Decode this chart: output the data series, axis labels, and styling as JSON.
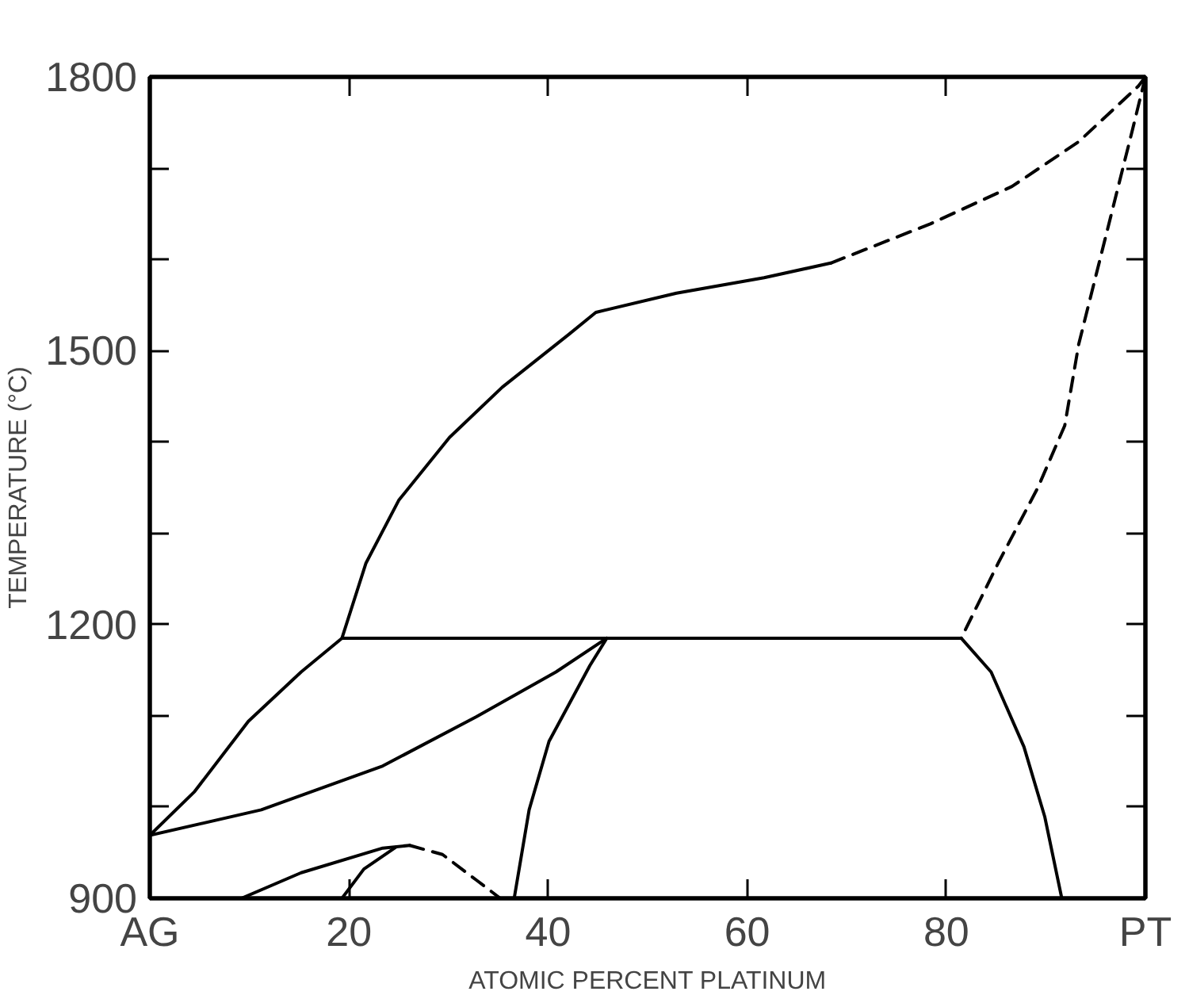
{
  "chart_data": {
    "type": "line",
    "xlabel": "ATOMIC PERCENT PLATINUM",
    "ylabel": "TEMPERATURE (°C)",
    "xlim": [
      0,
      100
    ],
    "ylim": [
      900,
      1800
    ],
    "xticks": [
      {
        "value": 0,
        "label": "AG"
      },
      20,
      40,
      60,
      80,
      {
        "value": 100,
        "label": "PT"
      }
    ],
    "yticks": [
      900,
      {
        "value": 1000,
        "label": null
      },
      {
        "value": 1100,
        "label": null
      },
      1200,
      {
        "value": 1300,
        "label": null
      },
      {
        "value": 1400,
        "label": null
      },
      1500,
      {
        "value": 1600,
        "label": null
      },
      {
        "value": 1700,
        "label": null
      },
      1800
    ],
    "line_style": "solid",
    "marker": "none",
    "series": [
      {
        "color": "#000000",
        "x": [
          0,
          4.5,
          9.9,
          15.2,
          19.3,
          21.7,
          25,
          30.1,
          35.4,
          42.1,
          44.8,
          52.9,
          61.7,
          68.4
        ],
        "values": [
          969,
          1017,
          1094,
          1148,
          1185,
          1267,
          1336,
          1405,
          1460,
          1518,
          1542,
          1563,
          1580,
          1596
        ]
      },
      {
        "color": "#000000",
        "line_style": "dashed",
        "x": [
          68.4,
          78.4,
          86.6,
          93.3,
          99.3,
          100
        ],
        "values": [
          1596,
          1639,
          1680,
          1729,
          1790,
          1800
        ]
      },
      {
        "color": "#000000",
        "line_style": "dashed",
        "x": [
          100,
          98.7,
          93.3,
          91.9,
          89.2,
          85.2,
          81.5
        ],
        "values": [
          1800,
          1742,
          1507,
          1418,
          1350,
          1267,
          1185
        ]
      },
      {
        "color": "#000000",
        "x": [
          19.3,
          45.9,
          81.5
        ],
        "values": [
          1185,
          1185,
          1185
        ]
      },
      {
        "color": "#000000",
        "x": [
          0,
          11.2,
          23.4,
          32.8,
          40.8,
          45.9
        ],
        "values": [
          969,
          997,
          1045,
          1099,
          1148,
          1185
        ]
      },
      {
        "color": "#000000",
        "x": [
          45.9,
          44.2,
          40.1,
          38.1,
          36.6
        ],
        "values": [
          1185,
          1155,
          1072,
          997,
          900
        ]
      },
      {
        "color": "#000000",
        "x": [
          81.5,
          84.5,
          87.8,
          89.9,
          91.6
        ],
        "values": [
          1185,
          1148,
          1066,
          989,
          900
        ]
      },
      {
        "color": "#000000",
        "x": [
          9.2,
          15.2,
          23.4,
          26.1
        ],
        "values": [
          900,
          928,
          955,
          958
        ]
      },
      {
        "color": "#000000",
        "line_style": "dashed",
        "x": [
          26.1,
          29.4,
          32.8,
          35.2
        ],
        "values": [
          958,
          948,
          920,
          900
        ]
      },
      {
        "color": "#000000",
        "x": [
          19.3,
          21.5,
          24.7
        ],
        "values": [
          900,
          932,
          956
        ]
      }
    ]
  }
}
